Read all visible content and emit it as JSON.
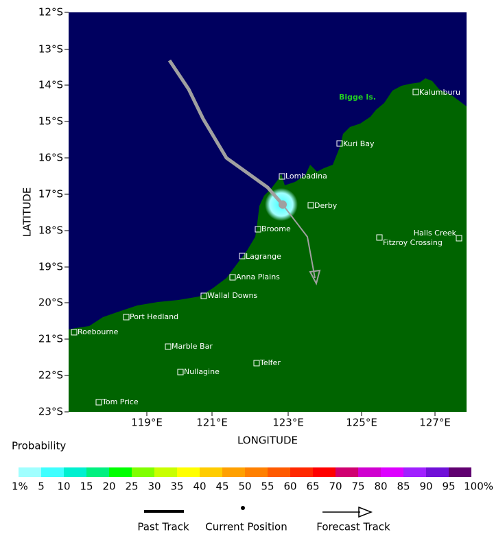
{
  "map": {
    "y_label": "LATITUDE",
    "x_label": "LONGITUDE",
    "lat_ticks": [
      "12°S",
      "13°S",
      "14°S",
      "15°S",
      "16°S",
      "17°S",
      "18°S",
      "19°S",
      "20°S",
      "21°S",
      "22°S",
      "23°S"
    ],
    "lon_ticks": [
      "119°E",
      "121°E",
      "123°E",
      "125°E",
      "127°E"
    ],
    "island": "Bigge Is.",
    "places": [
      "Kalumburu",
      "Kuri Bay",
      "Lombadina",
      "Derby",
      "Broome",
      "Halls Creek",
      "Fitzroy Crossing",
      "Lagrange",
      "Anna Plains",
      "Wallal Downs",
      "Port Hedland",
      "Roebourne",
      "Marble Bar",
      "Telfer",
      "Nullagine",
      "Tom Price"
    ]
  },
  "legend": {
    "title": "Probability",
    "colors": [
      "#a0ffff",
      "#40ffff",
      "#00f0d0",
      "#00f080",
      "#00ff00",
      "#80ff00",
      "#c8ff00",
      "#ffff00",
      "#ffcc00",
      "#ffa000",
      "#ff8000",
      "#ff5a00",
      "#ff2800",
      "#ff0000",
      "#d00070",
      "#d000d0",
      "#dd00ff",
      "#a020ff",
      "#7010d8",
      "#600070"
    ],
    "labels": [
      "1%",
      "5",
      "10",
      "15",
      "20",
      "25",
      "30",
      "35",
      "40",
      "45",
      "50",
      "55",
      "60",
      "65",
      "70",
      "75",
      "80",
      "85",
      "90",
      "95",
      "100%"
    ],
    "track_items": [
      "Past Track",
      "Current Position",
      "Forecast Track"
    ]
  }
}
